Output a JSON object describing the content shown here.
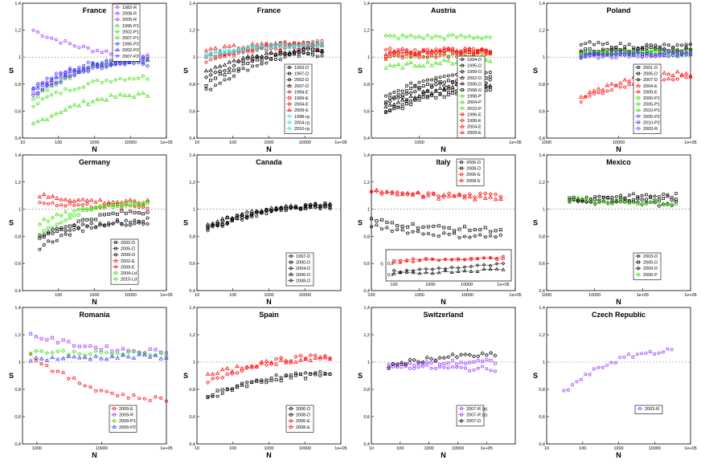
{
  "colors": {
    "R": "#9933ff",
    "P1": "#33dd00",
    "P2": "#3333ff",
    "D": "#000000",
    "E": "#ff0000",
    "rg": "#33dddd",
    "Ld": "#33dd00",
    "P": "#33dd00"
  },
  "chart_data": [
    {
      "type": "scatter",
      "title": "France",
      "xlabel": "N",
      "ylabel": "S",
      "xscale": "log",
      "xlim": [
        10,
        100000
      ],
      "ylim": [
        0.4,
        1.4
      ],
      "xticks": [
        "10",
        "100",
        "1000",
        "10000",
        "1e+05"
      ],
      "yticks": [
        "0,4",
        "0,6",
        "0,8",
        "1",
        "1,2",
        "1,4"
      ],
      "legend_pos": "top-right",
      "series": [
        {
          "name": "1982-R",
          "color": "R",
          "start": 1.2,
          "end": 1.02,
          "from": 20,
          "to": 30000
        },
        {
          "name": "2008-R",
          "color": "R",
          "start": 0.72,
          "end": 0.98,
          "from": 20,
          "to": 30000
        },
        {
          "name": "2005-R",
          "color": "R",
          "start": 0.78,
          "end": 0.97,
          "from": 20,
          "to": 30000
        },
        {
          "name": "1995-P1",
          "color": "P1",
          "start": 0.5,
          "end": 0.72,
          "from": 20,
          "to": 30000
        },
        {
          "name": "2002-P1",
          "color": "P1",
          "start": 0.65,
          "end": 0.85,
          "from": 20,
          "to": 30000
        },
        {
          "name": "2007-P1",
          "color": "P1",
          "start": 0.7,
          "end": 0.98,
          "from": 20,
          "to": 30000
        },
        {
          "name": "1995-P2",
          "color": "P2",
          "start": 0.72,
          "end": 0.95,
          "from": 20,
          "to": 30000
        },
        {
          "name": "2002-P2",
          "color": "P2",
          "start": 0.75,
          "end": 0.98,
          "from": 20,
          "to": 30000
        },
        {
          "name": "2007-P2",
          "color": "P2",
          "start": 0.78,
          "end": 1.0,
          "from": 20,
          "to": 30000
        }
      ]
    },
    {
      "type": "scatter",
      "title": "France",
      "xlabel": "N",
      "ylabel": "S",
      "xscale": "log",
      "xlim": [
        10,
        100000
      ],
      "ylim": [
        0.4,
        1.4
      ],
      "xticks": [
        "10",
        "100",
        "1000",
        "10000",
        "1e+05"
      ],
      "yticks": [
        "0,4",
        "0,6",
        "0,8",
        "1",
        "1,2",
        "1,4"
      ],
      "legend_pos": "bottom-right",
      "series": [
        {
          "name": "1993-D",
          "color": "D",
          "start": 0.75,
          "end": 1.02,
          "from": 18,
          "to": 30000
        },
        {
          "name": "1997-D",
          "color": "D",
          "start": 0.8,
          "end": 1.04,
          "from": 18,
          "to": 30000
        },
        {
          "name": "2002-D",
          "color": "D",
          "start": 0.85,
          "end": 1.05,
          "from": 18,
          "to": 30000
        },
        {
          "name": "2007-D",
          "color": "D",
          "start": 0.9,
          "end": 1.06,
          "from": 18,
          "to": 30000
        },
        {
          "name": "1994-E",
          "color": "E",
          "start": 0.95,
          "end": 1.12,
          "from": 18,
          "to": 30000
        },
        {
          "name": "1999-E",
          "color": "E",
          "start": 1.0,
          "end": 1.1,
          "from": 18,
          "to": 30000
        },
        {
          "name": "2004-E",
          "color": "E",
          "start": 1.0,
          "end": 1.08,
          "from": 18,
          "to": 30000
        },
        {
          "name": "2009-E",
          "color": "E",
          "start": 1.05,
          "end": 1.1,
          "from": 18,
          "to": 30000
        },
        {
          "name": "1998-rg",
          "color": "rg",
          "start": 1.0,
          "end": 1.1,
          "from": 18,
          "to": 30000
        },
        {
          "name": "2004-rg",
          "color": "rg",
          "start": 1.02,
          "end": 1.09,
          "from": 18,
          "to": 30000
        },
        {
          "name": "2010-rg",
          "color": "rg",
          "start": 1.03,
          "end": 1.08,
          "from": 18,
          "to": 30000
        }
      ]
    },
    {
      "type": "scatter",
      "title": "Austria",
      "xlabel": "N",
      "ylabel": "S",
      "xscale": "log",
      "xlim": [
        100,
        100000
      ],
      "ylim": [
        0.4,
        1.4
      ],
      "xticks": [
        "1000",
        "1e+05"
      ],
      "yticks": [
        "0,4",
        "0,6",
        "0,8",
        "1",
        "1,2",
        "1,4"
      ],
      "legend_pos": "right",
      "series": [
        {
          "name": "1994-D",
          "color": "D",
          "start": 0.7,
          "end": 0.9,
          "from": 200,
          "to": 30000
        },
        {
          "name": "1995-D",
          "color": "D",
          "start": 0.68,
          "end": 0.85,
          "from": 200,
          "to": 30000
        },
        {
          "name": "1999-D",
          "color": "D",
          "start": 0.65,
          "end": 0.82,
          "from": 200,
          "to": 30000
        },
        {
          "name": "2002-D",
          "color": "D",
          "start": 0.62,
          "end": 0.8,
          "from": 200,
          "to": 30000
        },
        {
          "name": "2006-D",
          "color": "D",
          "start": 0.6,
          "end": 0.78,
          "from": 200,
          "to": 30000
        },
        {
          "name": "2008-D",
          "color": "D",
          "start": 0.58,
          "end": 0.75,
          "from": 200,
          "to": 30000
        },
        {
          "name": "1998-P",
          "color": "P",
          "start": 1.15,
          "end": 1.15,
          "from": 200,
          "to": 30000
        },
        {
          "name": "2004-P",
          "color": "P",
          "start": 0.92,
          "end": 0.97,
          "from": 200,
          "to": 30000
        },
        {
          "name": "2010-P",
          "color": "P",
          "start": 1.0,
          "end": 1.02,
          "from": 200,
          "to": 30000
        },
        {
          "name": "1996-E",
          "color": "E",
          "start": 1.02,
          "end": 1.05,
          "from": 200,
          "to": 30000
        },
        {
          "name": "1999-E",
          "color": "E",
          "start": 1.05,
          "end": 1.05,
          "from": 200,
          "to": 30000
        },
        {
          "name": "2004-E",
          "color": "E",
          "start": 1.03,
          "end": 1.04,
          "from": 200,
          "to": 30000
        },
        {
          "name": "2009-E",
          "color": "E",
          "start": 1.0,
          "end": 1.02,
          "from": 200,
          "to": 30000
        }
      ]
    },
    {
      "type": "scatter",
      "title": "Poland",
      "xlabel": "N",
      "ylabel": "S",
      "xscale": "log",
      "xlim": [
        1000,
        100000
      ],
      "ylim": [
        0.4,
        1.4
      ],
      "xticks": [
        "1000",
        "10000",
        "1e+05"
      ],
      "yticks": [
        "0,4",
        "0,6",
        "0,8",
        "1",
        "1,2",
        "1,4"
      ],
      "legend_pos": "right",
      "series": [
        {
          "name": "2001-D",
          "color": "D",
          "start": 1.1,
          "end": 1.08,
          "from": 3000,
          "to": 100000
        },
        {
          "name": "2005-D",
          "color": "D",
          "start": 1.05,
          "end": 1.06,
          "from": 3000,
          "to": 100000
        },
        {
          "name": "2007-D",
          "color": "D",
          "start": 1.03,
          "end": 1.05,
          "from": 3000,
          "to": 100000
        },
        {
          "name": "2004-E",
          "color": "E",
          "start": 0.7,
          "end": 0.88,
          "from": 3000,
          "to": 100000
        },
        {
          "name": "2009-E",
          "color": "E",
          "start": 0.68,
          "end": 0.85,
          "from": 3000,
          "to": 100000
        },
        {
          "name": "2000-P1",
          "color": "P1",
          "start": 1.02,
          "end": 1.03,
          "from": 3000,
          "to": 100000
        },
        {
          "name": "2005-P1",
          "color": "P1",
          "start": 1.03,
          "end": 1.04,
          "from": 3000,
          "to": 100000
        },
        {
          "name": "2010-P1",
          "color": "P1",
          "start": 1.02,
          "end": 1.03,
          "from": 3000,
          "to": 100000
        },
        {
          "name": "2005-P2",
          "color": "P2",
          "start": 1.01,
          "end": 1.02,
          "from": 3000,
          "to": 100000
        },
        {
          "name": "2010-P2",
          "color": "P2",
          "start": 1.02,
          "end": 1.03,
          "from": 3000,
          "to": 100000
        },
        {
          "name": "2003-R",
          "color": "R",
          "start": 1.0,
          "end": 1.02,
          "from": 3000,
          "to": 100000
        }
      ]
    },
    {
      "type": "scatter",
      "title": "Germany",
      "xlabel": "N",
      "ylabel": "S",
      "xscale": "log",
      "xlim": [
        10,
        100000
      ],
      "ylim": [
        0.4,
        1.4
      ],
      "xticks": [
        "100",
        "1000",
        "10000",
        "1e+05"
      ],
      "yticks": [
        "0,4",
        "0,6",
        "0,8",
        "1",
        "1,2",
        "1,4"
      ],
      "legend_pos": "bottom-right",
      "series": [
        {
          "name": "2002-D",
          "color": "D",
          "start": 0.72,
          "end": 0.92,
          "from": 30,
          "to": 30000
        },
        {
          "name": "2005-D",
          "color": "D",
          "start": 0.78,
          "end": 0.98,
          "from": 30,
          "to": 30000
        },
        {
          "name": "2009-D",
          "color": "D",
          "start": 0.82,
          "end": 0.9,
          "from": 30,
          "to": 30000
        },
        {
          "name": "2002-E",
          "color": "E",
          "start": 1.1,
          "end": 1.05,
          "from": 30,
          "to": 30000
        },
        {
          "name": "2009-E",
          "color": "E",
          "start": 1.05,
          "end": 1.02,
          "from": 30,
          "to": 30000
        },
        {
          "name": "2004-Ld",
          "color": "Ld",
          "start": 0.82,
          "end": 1.05,
          "from": 30,
          "to": 30000
        },
        {
          "name": "2010-Ld",
          "color": "Ld",
          "start": 0.9,
          "end": 1.04,
          "from": 30,
          "to": 30000
        }
      ]
    },
    {
      "type": "scatter",
      "title": "Canada",
      "xlabel": "N",
      "ylabel": "S",
      "xscale": "log",
      "xlim": [
        10,
        100000
      ],
      "ylim": [
        0.4,
        1.4
      ],
      "xticks": [
        "10",
        "100",
        "1000",
        "10000"
      ],
      "yticks": [
        "0,4",
        "0,6",
        "0,8",
        "1",
        "1,2",
        "1,4"
      ],
      "legend_pos": "bottom-right",
      "series": [
        {
          "name": "1997-D",
          "color": "D",
          "start": 0.85,
          "end": 1.02,
          "from": 20,
          "to": 50000
        },
        {
          "name": "2000-D",
          "color": "D",
          "start": 0.87,
          "end": 1.03,
          "from": 20,
          "to": 50000
        },
        {
          "name": "2004-D",
          "color": "D",
          "start": 0.86,
          "end": 1.02,
          "from": 20,
          "to": 50000
        },
        {
          "name": "2006-D",
          "color": "D",
          "start": 0.88,
          "end": 1.03,
          "from": 20,
          "to": 50000
        },
        {
          "name": "2008-D",
          "color": "D",
          "start": 0.87,
          "end": 1.02,
          "from": 20,
          "to": 50000
        }
      ]
    },
    {
      "type": "scatter",
      "title": "Italy",
      "xlabel": "N",
      "ylabel": "S",
      "xscale": "log",
      "xlim": [
        100,
        100000
      ],
      "ylim": [
        0.4,
        1.4
      ],
      "xticks": [
        "100",
        "1000",
        "10000",
        "1e+05"
      ],
      "yticks": [
        "0,4",
        "0,6",
        "0,8",
        "1",
        "1,2",
        "1,4"
      ],
      "legend_pos": "top-right",
      "inset": {
        "ylabel": "S",
        "xticks": [
          "100",
          "1000",
          "10000",
          "1e+05"
        ],
        "yticks": [
          "0,6",
          "0,8"
        ]
      },
      "series": [
        {
          "name": "2006-D",
          "color": "D",
          "start": 0.88,
          "end": 0.8,
          "from": 100,
          "to": 50000
        },
        {
          "name": "2008-D",
          "color": "D",
          "start": 0.92,
          "end": 0.85,
          "from": 100,
          "to": 50000
        },
        {
          "name": "2006-E",
          "color": "E",
          "start": 1.12,
          "end": 1.1,
          "from": 100,
          "to": 50000
        },
        {
          "name": "2008-E",
          "color": "E",
          "start": 1.15,
          "end": 1.08,
          "from": 100,
          "to": 50000
        }
      ]
    },
    {
      "type": "scatter",
      "title": "Mexico",
      "xlabel": "N",
      "ylabel": "S",
      "xscale": "log",
      "xlim": [
        1000,
        1000000
      ],
      "ylim": [
        0.4,
        1.4
      ],
      "xticks": [
        "1000",
        "10000",
        "1e+05",
        "1e+06"
      ],
      "yticks": [
        "0,4",
        "0,6",
        "0,8",
        "1",
        "1,2",
        "1,4"
      ],
      "legend_pos": "bottom-right",
      "series": [
        {
          "name": "2003-D",
          "color": "D",
          "start": 1.08,
          "end": 1.1,
          "from": 3000,
          "to": 500000
        },
        {
          "name": "2006-D",
          "color": "D",
          "start": 1.07,
          "end": 1.08,
          "from": 3000,
          "to": 500000
        },
        {
          "name": "2009-D",
          "color": "D",
          "start": 1.06,
          "end": 1.04,
          "from": 3000,
          "to": 500000
        },
        {
          "name": "2006-P",
          "color": "P",
          "start": 1.08,
          "end": 1.05,
          "from": 3000,
          "to": 500000
        }
      ]
    },
    {
      "type": "scatter",
      "title": "Romania",
      "xlabel": "N",
      "ylabel": "S",
      "xscale": "log",
      "xlim": [
        600,
        100000
      ],
      "ylim": [
        0.4,
        1.4
      ],
      "xticks": [
        "1000",
        "10000",
        "1e+05"
      ],
      "yticks": [
        "0,4",
        "0,6",
        "0,8",
        "1",
        "1,2",
        "1,4"
      ],
      "legend_pos": "bottom-right",
      "series": [
        {
          "name": "2009-E",
          "color": "E",
          "start": 1.05,
          "end": 0.73,
          "from": 800,
          "to": 100000
        },
        {
          "name": "2009-R",
          "color": "R",
          "start": 1.2,
          "end": 1.08,
          "from": 800,
          "to": 100000
        },
        {
          "name": "2009-P1",
          "color": "P1",
          "start": 1.08,
          "end": 1.06,
          "from": 800,
          "to": 100000
        },
        {
          "name": "2009-P2",
          "color": "P2",
          "start": 1.02,
          "end": 1.04,
          "from": 800,
          "to": 100000
        }
      ]
    },
    {
      "type": "scatter",
      "title": "Spain",
      "xlabel": "N",
      "ylabel": "S",
      "xscale": "log",
      "xlim": [
        10,
        100000
      ],
      "ylim": [
        0.4,
        1.4
      ],
      "xticks": [
        "10",
        "100",
        "1000",
        "10000",
        "1e+05"
      ],
      "yticks": [
        "0,4",
        "0,6",
        "0,8",
        "1",
        "1,2",
        "1,4"
      ],
      "legend_pos": "bottom-right",
      "series": [
        {
          "name": "2006-D",
          "color": "D",
          "start": 0.73,
          "end": 0.92,
          "from": 20,
          "to": 50000
        },
        {
          "name": "2008-D",
          "color": "D",
          "start": 0.75,
          "end": 0.9,
          "from": 20,
          "to": 50000
        },
        {
          "name": "2006-E",
          "color": "E",
          "start": 0.85,
          "end": 1.04,
          "from": 20,
          "to": 50000
        },
        {
          "name": "2008-E",
          "color": "E",
          "start": 0.9,
          "end": 1.02,
          "from": 20,
          "to": 50000
        }
      ]
    },
    {
      "type": "scatter",
      "title": "Switzerland",
      "xlabel": "N",
      "ylabel": "S",
      "xscale": "log",
      "xlim": [
        10,
        1000000
      ],
      "ylim": [
        0.4,
        1.4
      ],
      "xticks": [
        "10",
        "100",
        "1000",
        "10000",
        "1e+05"
      ],
      "yticks": [
        "0,4",
        "0,6",
        "0,8",
        "1",
        "1,2",
        "1,4"
      ],
      "legend_pos": "bottom-right",
      "series": [
        {
          "name": "2007-R (a)",
          "color": "R",
          "start": 0.98,
          "end": 0.95,
          "from": 40,
          "to": 200000
        },
        {
          "name": "2007-R (b)",
          "color": "R",
          "start": 0.97,
          "end": 1.0,
          "from": 40,
          "to": 200000
        },
        {
          "name": "2007-D",
          "color": "D",
          "start": 0.97,
          "end": 1.05,
          "from": 40,
          "to": 200000
        }
      ]
    },
    {
      "type": "scatter",
      "title": "Czech Republic",
      "xlabel": "N",
      "ylabel": "S",
      "xscale": "log",
      "xlim": [
        10,
        100000
      ],
      "ylim": [
        0.4,
        1.4
      ],
      "xticks": [
        "10",
        "100",
        "1000",
        "10000",
        "1e+05"
      ],
      "yticks": [
        "0,4",
        "0,6",
        "0,8",
        "1",
        "1,2",
        "1,4"
      ],
      "legend_pos": "bottom-right",
      "series": [
        {
          "name": "2003-R",
          "color": "R",
          "start": 0.78,
          "end": 1.08,
          "from": 30,
          "to": 30000
        }
      ]
    }
  ]
}
